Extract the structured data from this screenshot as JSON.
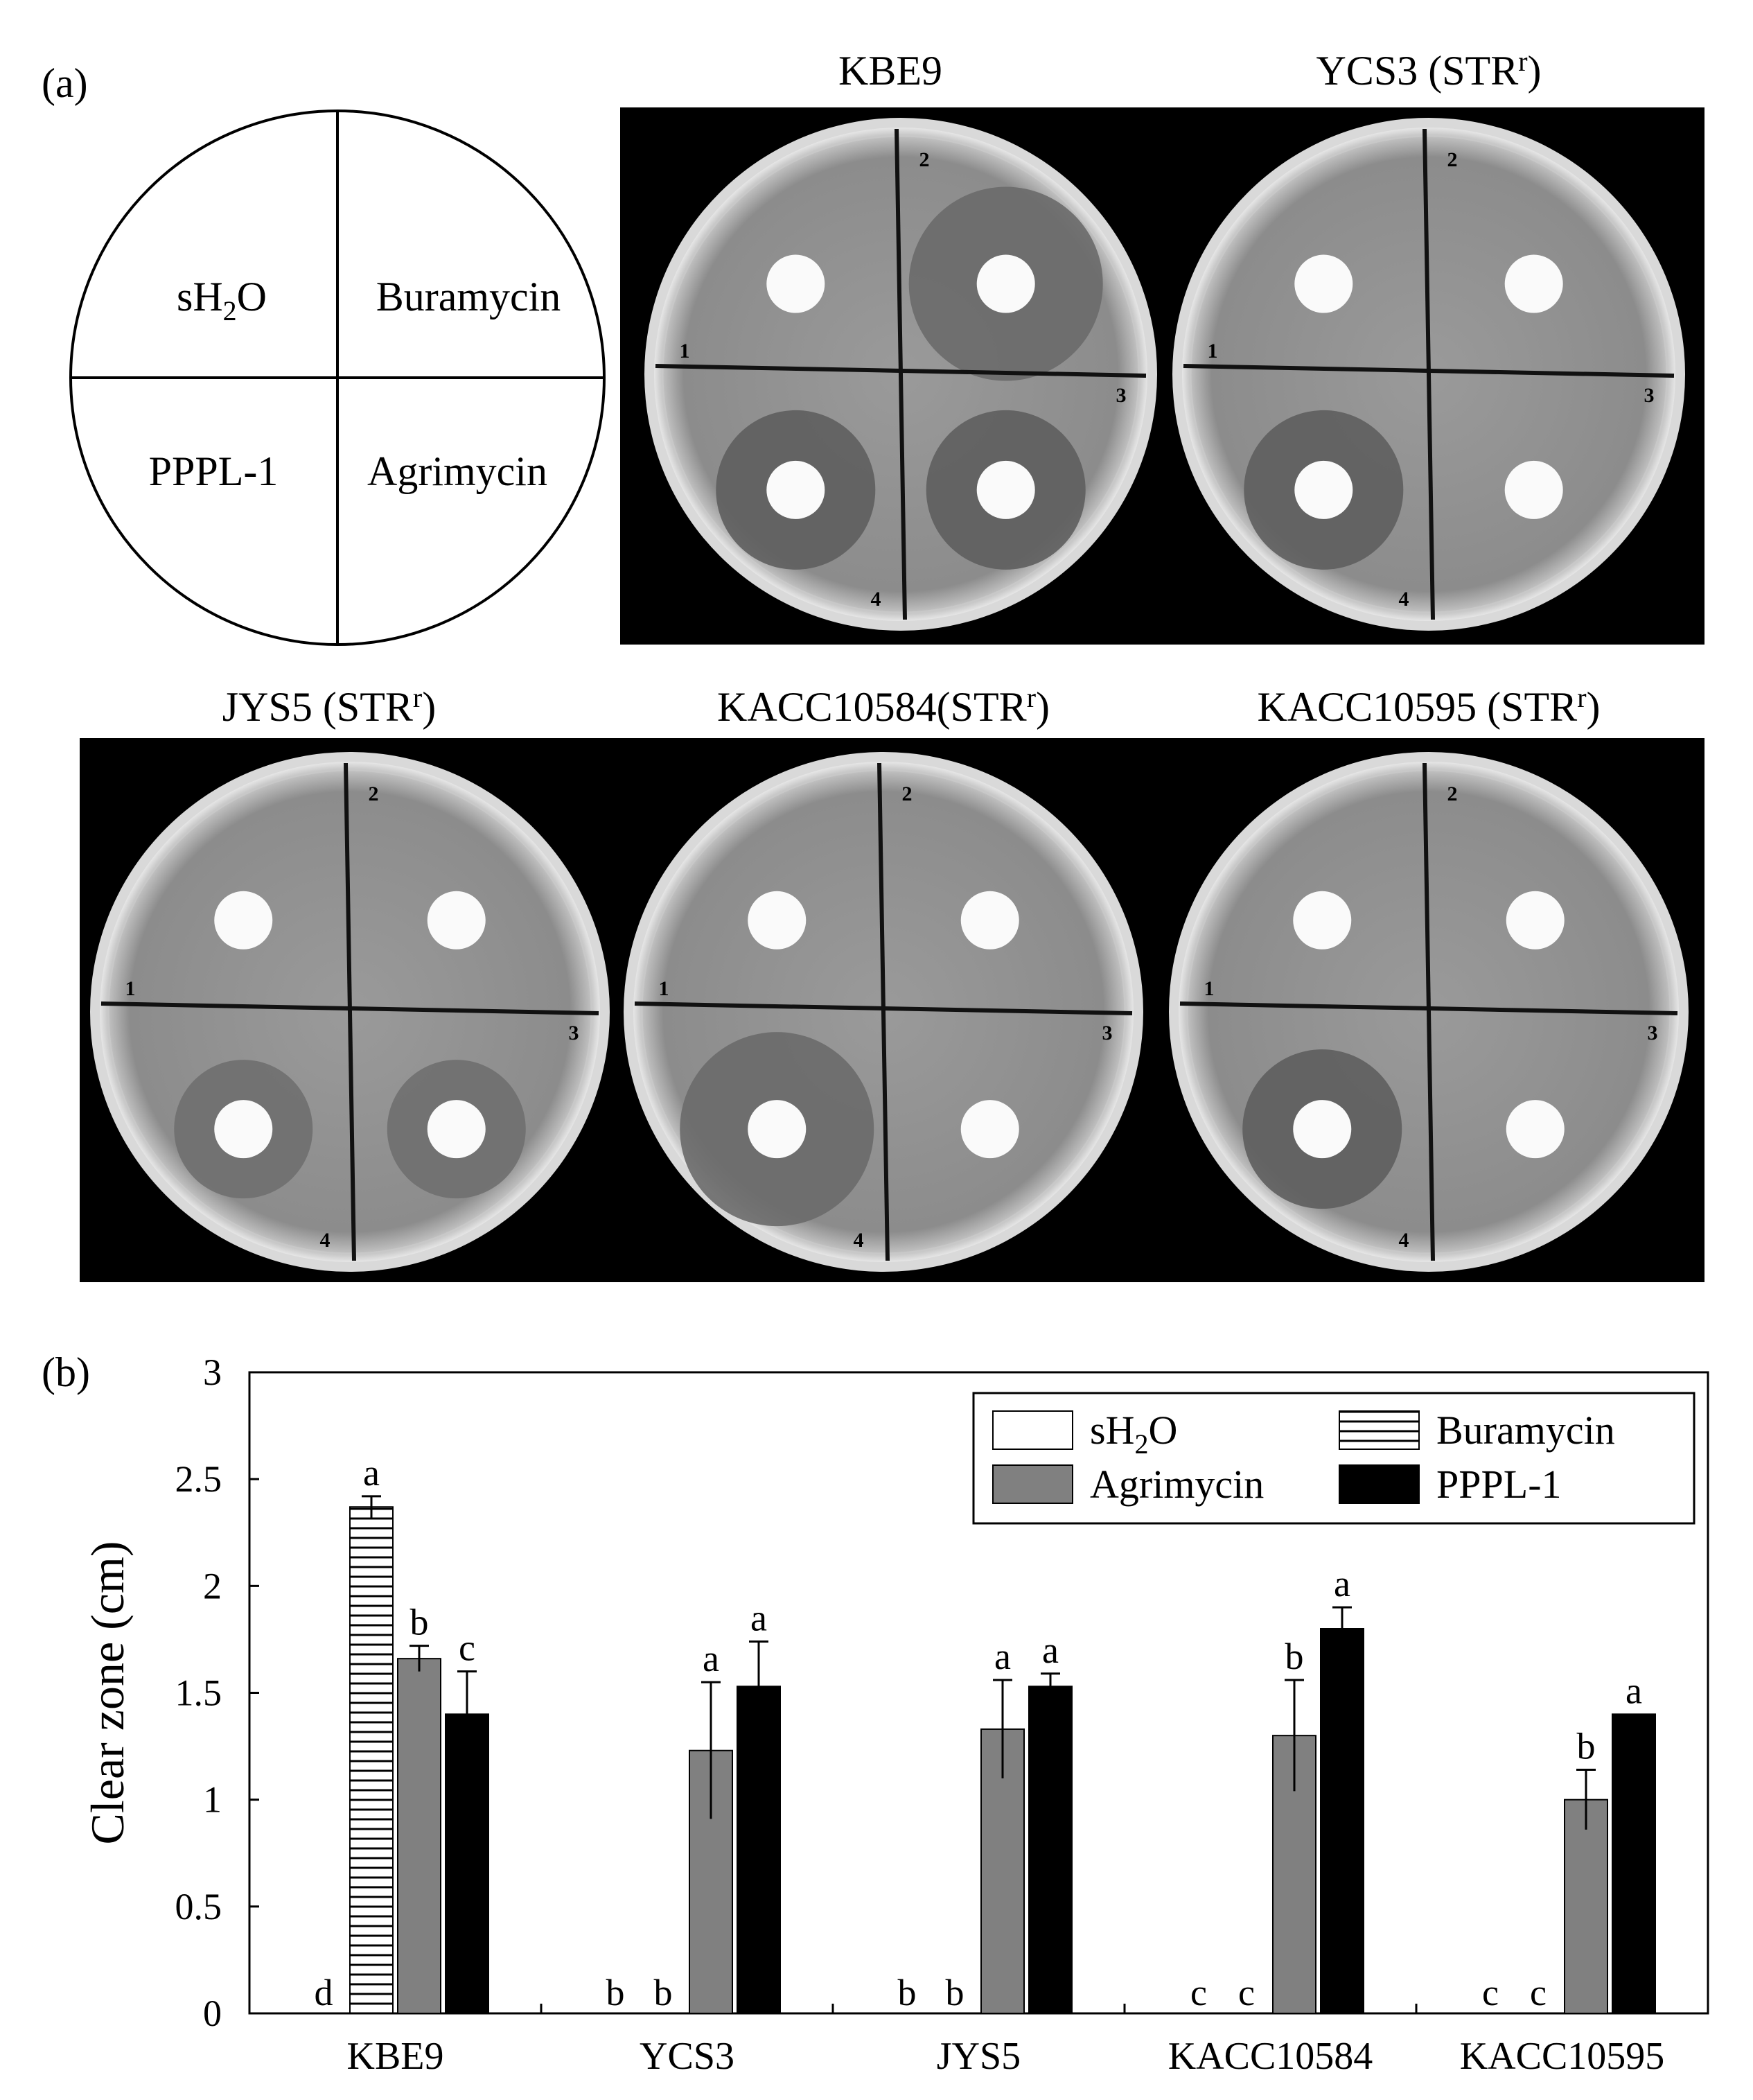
{
  "panel_a": {
    "label": "(a)",
    "schematic": {
      "quadrants": [
        "sH",
        "2",
        "O",
        "Buramycin",
        "PPPL-1",
        "Agrimycin"
      ]
    },
    "plates": [
      {
        "title": "KBE9",
        "title_sup": "",
        "title_tail": "",
        "note": "1",
        "zones": {
          "buramycin": "large",
          "ppplone": "medium",
          "agrimycin": "medium"
        }
      },
      {
        "title": "YCS3 (STR",
        "title_sup": "r",
        "title_tail": ")",
        "note": "",
        "zones": {
          "buramycin": "none",
          "ppplone": "medium",
          "agrimycin": "none"
        }
      },
      {
        "title": "JYS5 (STR",
        "title_sup": "r",
        "title_tail": ")",
        "note": "",
        "zones": {
          "buramycin": "none",
          "ppplone": "faint",
          "agrimycin": "faint"
        }
      },
      {
        "title": "KACC10584(STR",
        "title_sup": "r",
        "title_tail": ")",
        "note": "",
        "zones": {
          "buramycin": "none",
          "ppplone": "large",
          "agrimycin": "none"
        }
      },
      {
        "title": "KACC10595 (STR",
        "title_sup": "r",
        "title_tail": ")",
        "note": "",
        "zones": {
          "buramycin": "none",
          "ppplone": "medium",
          "agrimycin": "none"
        }
      }
    ],
    "plate_marks": [
      "2",
      "1",
      "3",
      "4"
    ]
  },
  "panel_b": {
    "label": "(b)"
  },
  "chart_data": {
    "type": "bar",
    "ylabel": "Clear zone (cm)",
    "xlabel": "",
    "ylim": [
      0,
      3
    ],
    "yticks": [
      "0",
      "0.5",
      "1",
      "1.5",
      "2",
      "2.5",
      "3"
    ],
    "categories": [
      "KBE9",
      "YCS3",
      "JYS5",
      "KACC10584",
      "KACC10595"
    ],
    "series": [
      {
        "name": "sH2O",
        "legend": [
          "sH",
          "2",
          "O"
        ],
        "fill": "#ffffff",
        "pattern": "none",
        "values": [
          0,
          0,
          0,
          0,
          0
        ],
        "errors": [
          0,
          0,
          0,
          0,
          0
        ],
        "letters": [
          "d",
          "b",
          "b",
          "c",
          "c"
        ]
      },
      {
        "name": "Buramycin",
        "legend": [
          "Buramycin"
        ],
        "fill": "#ffffff",
        "pattern": "horizontal-lines",
        "values": [
          2.37,
          0,
          0,
          0,
          0
        ],
        "errors": [
          0.05,
          0,
          0,
          0,
          0
        ],
        "letters": [
          "a",
          "b",
          "b",
          "c",
          "c"
        ]
      },
      {
        "name": "Agrimycin",
        "legend": [
          "Agrimycin"
        ],
        "fill": "#808080",
        "pattern": "none",
        "values": [
          1.66,
          1.23,
          1.33,
          1.3,
          1.0
        ],
        "errors": [
          0.06,
          0.32,
          0.23,
          0.26,
          0.14
        ],
        "letters": [
          "b",
          "a",
          "a",
          "b",
          "b"
        ]
      },
      {
        "name": "PPPL-1",
        "legend": [
          "PPPL-1"
        ],
        "fill": "#000000",
        "pattern": "none",
        "values": [
          1.4,
          1.53,
          1.53,
          1.8,
          1.4
        ],
        "errors": [
          0.2,
          0.21,
          0.06,
          0.1,
          0.0
        ],
        "letters": [
          "c",
          "a",
          "a",
          "a",
          "a"
        ]
      }
    ],
    "legend_position": "top-right",
    "grid": false
  }
}
